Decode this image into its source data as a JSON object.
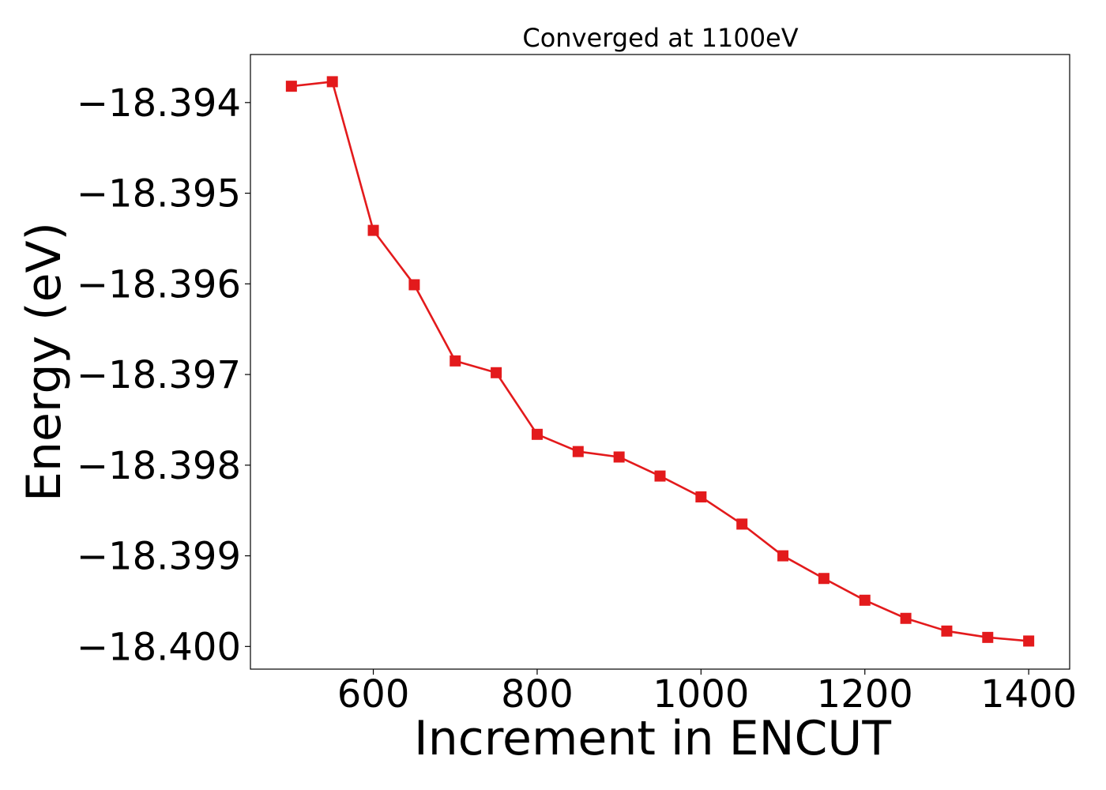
{
  "chart_data": {
    "type": "line",
    "title": "Converged at 1100eV",
    "xlabel": "Increment in ENCUT",
    "ylabel": "Energy (eV)",
    "x": [
      500,
      550,
      600,
      650,
      700,
      750,
      800,
      850,
      900,
      950,
      1000,
      1050,
      1100,
      1150,
      1200,
      1250,
      1300,
      1350,
      1400
    ],
    "series": [
      {
        "values": [
          -18.39382,
          -18.39377,
          -18.39541,
          -18.39601,
          -18.39685,
          -18.39698,
          -18.39766,
          -18.39785,
          -18.39791,
          -18.39812,
          -18.39835,
          -18.39865,
          -18.399,
          -18.39925,
          -18.39949,
          -18.39969,
          -18.39983,
          -18.3999,
          -18.39994
        ],
        "color": "#e31a1c",
        "marker": "square"
      }
    ],
    "xlim": [
      450,
      1450
    ],
    "ylim": [
      -18.40025,
      -18.39347
    ],
    "xticks": [
      600,
      800,
      1000,
      1200,
      1400
    ],
    "xtick_labels": [
      "600",
      "800",
      "1000",
      "1200",
      "1400"
    ],
    "yticks": [
      -18.394,
      -18.395,
      -18.396,
      -18.397,
      -18.398,
      -18.399,
      -18.4
    ],
    "ytick_labels": [
      "−18.394",
      "−18.395",
      "−18.396",
      "−18.397",
      "−18.398",
      "−18.399",
      "−18.400"
    ],
    "grid": false,
    "legend": "none"
  }
}
